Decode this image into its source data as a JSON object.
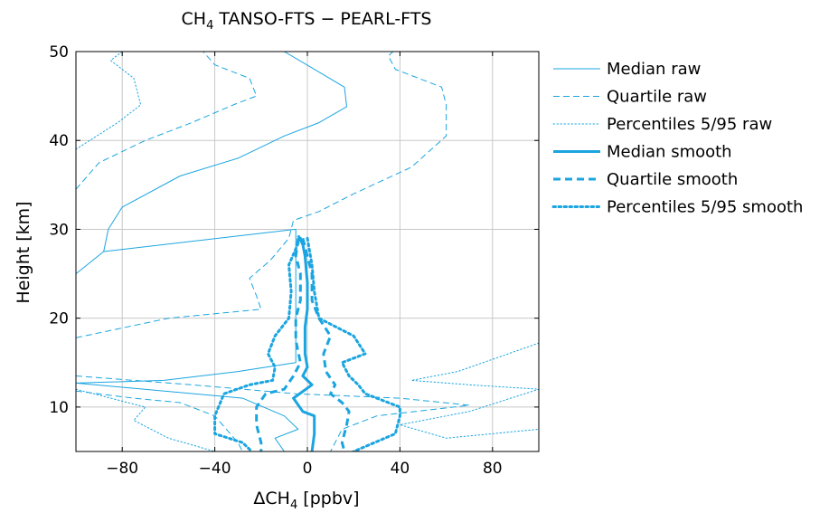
{
  "chart_data": {
    "type": "line",
    "title_prefix": "CH",
    "title_sub": "4",
    "title_rest": " TANSO-FTS − PEARL-FTS",
    "xlabel_prefix": "ΔCH",
    "xlabel_sub": "4",
    "xlabel_rest": " [ppbv]",
    "ylabel": "Height [km]",
    "xlim": [
      -100,
      100
    ],
    "ylim": [
      5,
      50
    ],
    "xticks": [
      -80,
      -40,
      0,
      40,
      80
    ],
    "yticks": [
      10,
      20,
      30,
      40,
      50
    ],
    "xtick_labels": [
      "−80",
      "−40",
      "0",
      "40",
      "80"
    ],
    "ytick_labels": [
      "10",
      "20",
      "30",
      "40",
      "50"
    ],
    "grid": true,
    "legend_position": "right",
    "color": "#1ba5e0",
    "series": [
      {
        "name": "Median raw",
        "style": "solid",
        "width": 1,
        "points": [
          [
            -10,
            5
          ],
          [
            -14,
            6.5
          ],
          [
            -4,
            7.5
          ],
          [
            -10,
            9
          ],
          [
            -28,
            11
          ],
          [
            -100,
            12.7
          ],
          [
            -100,
            12.7
          ],
          [
            -62,
            13
          ],
          [
            -30,
            14
          ],
          [
            -5,
            15
          ],
          [
            -5,
            30
          ],
          [
            -88,
            27.5
          ],
          [
            -100,
            25
          ],
          [
            -88,
            27.5
          ],
          [
            -86,
            30
          ],
          [
            -80,
            32.5
          ],
          [
            -55,
            36
          ],
          [
            -30,
            38
          ],
          [
            -10,
            40.5
          ],
          [
            5,
            42
          ],
          [
            17,
            43.8
          ],
          [
            16,
            46
          ],
          [
            3,
            48
          ],
          [
            -10,
            50
          ]
        ]
      },
      {
        "name": "Quartile raw",
        "style": "dashed",
        "width": 1,
        "points": [
          [
            -100,
            17.8
          ],
          [
            -60,
            20
          ],
          [
            -20,
            21
          ],
          [
            -22,
            22.5
          ],
          [
            -25,
            24.5
          ],
          [
            -16,
            26.5
          ],
          [
            -8,
            29
          ],
          [
            -6,
            31
          ],
          [
            5,
            32
          ],
          [
            20,
            34
          ],
          [
            45,
            37
          ],
          [
            60,
            40.5
          ],
          [
            60,
            44
          ],
          [
            58,
            46
          ],
          [
            38,
            48
          ],
          [
            35,
            49.5
          ],
          [
            37,
            50
          ]
        ]
      },
      {
        "name": "Quartile raw (left)",
        "style": "dashed",
        "width": 1,
        "points": [
          [
            -100,
            34.5
          ],
          [
            -90,
            37.5
          ],
          [
            -70,
            40
          ],
          [
            -50,
            42
          ],
          [
            -32,
            44
          ],
          [
            -22,
            45
          ],
          [
            -25,
            47
          ],
          [
            -40,
            48.5
          ],
          [
            -45,
            50
          ]
        ]
      },
      {
        "name": "Quartile raw (low)",
        "style": "dashed",
        "width": 1,
        "points": [
          [
            -100,
            13.5
          ],
          [
            -50,
            12.5
          ],
          [
            -5,
            11.5
          ],
          [
            40,
            11
          ],
          [
            70,
            10.2
          ],
          [
            30,
            9
          ],
          [
            15,
            7.5
          ],
          [
            10,
            5
          ]
        ]
      },
      {
        "name": "Quartile raw (lower-left)",
        "style": "dashed",
        "width": 1,
        "points": [
          [
            -100,
            11.8
          ],
          [
            -75,
            11
          ],
          [
            -55,
            10.5
          ],
          [
            -40,
            9
          ],
          [
            -30,
            6
          ],
          [
            -28,
            5
          ]
        ]
      },
      {
        "name": "Percentiles 5/95 raw",
        "style": "dotted",
        "width": 1,
        "points": [
          [
            -100,
            39
          ],
          [
            -82,
            42
          ],
          [
            -72,
            44
          ],
          [
            -75,
            47
          ],
          [
            -85,
            49
          ],
          [
            -80,
            50
          ]
        ]
      },
      {
        "name": "Percentiles 5/95 raw (low)",
        "style": "dotted",
        "width": 1,
        "points": [
          [
            -100,
            12
          ],
          [
            -70,
            10
          ],
          [
            -75,
            8.5
          ],
          [
            -60,
            6.5
          ],
          [
            -40,
            5
          ]
        ]
      },
      {
        "name": "Percentiles 5/95 raw (right)",
        "style": "dotted",
        "width": 1,
        "points": [
          [
            100,
            17.2
          ],
          [
            65,
            14
          ],
          [
            45,
            13
          ],
          [
            70,
            12.5
          ],
          [
            100,
            12
          ],
          [
            70,
            9.5
          ],
          [
            40,
            8
          ],
          [
            60,
            6.5
          ],
          [
            100,
            7.5
          ]
        ]
      },
      {
        "name": "Median smooth",
        "style": "solid",
        "width": 3,
        "points": [
          [
            -4,
            29.3
          ],
          [
            -2,
            28.3
          ],
          [
            -1,
            27
          ],
          [
            0,
            24
          ],
          [
            0,
            21
          ],
          [
            -1,
            19
          ],
          [
            -1,
            16
          ],
          [
            0,
            14.5
          ],
          [
            -2,
            13.5
          ],
          [
            2,
            12.5
          ],
          [
            -6,
            11
          ],
          [
            -2,
            9.5
          ],
          [
            3,
            9
          ],
          [
            3,
            7
          ],
          [
            2,
            5
          ]
        ]
      },
      {
        "name": "Quartile smooth",
        "style": "dashed",
        "width": 3,
        "points": [
          [
            -4,
            29
          ],
          [
            -5,
            27
          ],
          [
            -3,
            25
          ],
          [
            -3,
            22
          ],
          [
            -5,
            20
          ],
          [
            -5,
            17.5
          ],
          [
            -3,
            15
          ],
          [
            -6,
            13.5
          ],
          [
            -10,
            12
          ],
          [
            -18,
            11.5
          ],
          [
            -22,
            10
          ],
          [
            -22,
            8
          ],
          [
            -20,
            6
          ],
          [
            -20,
            5
          ]
        ]
      },
      {
        "name": "Quartile smooth (right)",
        "style": "dashed",
        "width": 3,
        "points": [
          [
            -2,
            29
          ],
          [
            0,
            27
          ],
          [
            2,
            25
          ],
          [
            2,
            22
          ],
          [
            5,
            20
          ],
          [
            10,
            18
          ],
          [
            7,
            16
          ],
          [
            8,
            14
          ],
          [
            12,
            12.5
          ],
          [
            10,
            11.5
          ],
          [
            15,
            10.5
          ],
          [
            18,
            9.5
          ],
          [
            17,
            8
          ],
          [
            15,
            6
          ],
          [
            16,
            5
          ]
        ]
      },
      {
        "name": "Percentiles 5/95 smooth",
        "style": "dotted",
        "width": 3,
        "points": [
          [
            -3,
            29
          ],
          [
            -8,
            26
          ],
          [
            -7,
            23
          ],
          [
            -8,
            20
          ],
          [
            -14,
            18
          ],
          [
            -17,
            16
          ],
          [
            -14,
            14.5
          ],
          [
            -15,
            13
          ],
          [
            -25,
            12.5
          ],
          [
            -36,
            11.5
          ],
          [
            -40,
            9
          ],
          [
            -40,
            7
          ],
          [
            -28,
            6
          ],
          [
            -24,
            5
          ]
        ]
      },
      {
        "name": "Percentiles 5/95 smooth (right)",
        "style": "dotted",
        "width": 3,
        "points": [
          [
            0,
            29
          ],
          [
            2,
            26
          ],
          [
            3,
            23
          ],
          [
            5,
            20
          ],
          [
            20,
            18
          ],
          [
            25,
            16
          ],
          [
            15,
            15
          ],
          [
            18,
            13.5
          ],
          [
            22,
            12.5
          ],
          [
            25,
            11.5
          ],
          [
            40,
            10
          ],
          [
            40,
            9
          ],
          [
            38,
            7
          ],
          [
            20,
            5
          ]
        ]
      }
    ],
    "legend": [
      {
        "label": "Median raw",
        "style": "solid",
        "width": 1
      },
      {
        "label": "Quartile raw",
        "style": "dashed",
        "width": 1
      },
      {
        "label": "Percentiles 5/95 raw",
        "style": "dotted",
        "width": 1
      },
      {
        "label": "Median smooth",
        "style": "solid",
        "width": 3
      },
      {
        "label": "Quartile smooth",
        "style": "dashed",
        "width": 3
      },
      {
        "label": "Percentiles 5/95 smooth",
        "style": "dotted",
        "width": 3
      }
    ]
  }
}
